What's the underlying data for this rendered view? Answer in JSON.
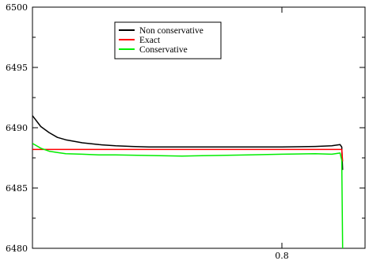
{
  "chart_data": {
    "type": "line",
    "title": "",
    "xlabel": "",
    "ylabel": "",
    "xlim": [
      0.65,
      0.85
    ],
    "ylim": [
      6480,
      6500
    ],
    "x_ticks": [
      0.8
    ],
    "y_ticks": [
      6480,
      6485,
      6490,
      6495,
      6500
    ],
    "grid": false,
    "legend": {
      "placement": "top-left",
      "boxed": true,
      "entries": [
        "Non conservative",
        "Exact",
        "Conservative"
      ]
    },
    "series": [
      {
        "name": "Non conservative",
        "color": "#000000",
        "x": [
          0.65,
          0.655,
          0.66,
          0.665,
          0.67,
          0.68,
          0.69,
          0.7,
          0.71,
          0.72,
          0.74,
          0.76,
          0.78,
          0.8,
          0.82,
          0.83,
          0.835,
          0.836,
          0.8365
        ],
        "y": [
          6491.0,
          6490.1,
          6489.6,
          6489.2,
          6489.0,
          6488.75,
          6488.6,
          6488.5,
          6488.45,
          6488.4,
          6488.4,
          6488.4,
          6488.4,
          6488.4,
          6488.45,
          6488.5,
          6488.6,
          6488.4,
          6486.5
        ]
      },
      {
        "name": "Exact",
        "color": "#ff0000",
        "x": [
          0.65,
          0.7,
          0.75,
          0.8,
          0.836,
          0.8365
        ],
        "y": [
          6488.2,
          6488.2,
          6488.2,
          6488.2,
          6488.2,
          6487.2
        ]
      },
      {
        "name": "Conservative",
        "color": "#00ee00",
        "x": [
          0.65,
          0.655,
          0.66,
          0.665,
          0.67,
          0.68,
          0.69,
          0.7,
          0.72,
          0.74,
          0.76,
          0.78,
          0.8,
          0.82,
          0.83,
          0.835,
          0.836,
          0.8365
        ],
        "y": [
          6488.7,
          6488.3,
          6488.05,
          6487.95,
          6487.85,
          6487.8,
          6487.75,
          6487.75,
          6487.7,
          6487.65,
          6487.7,
          6487.75,
          6487.8,
          6487.85,
          6487.8,
          6487.9,
          6487.3,
          6480.0
        ]
      }
    ]
  }
}
